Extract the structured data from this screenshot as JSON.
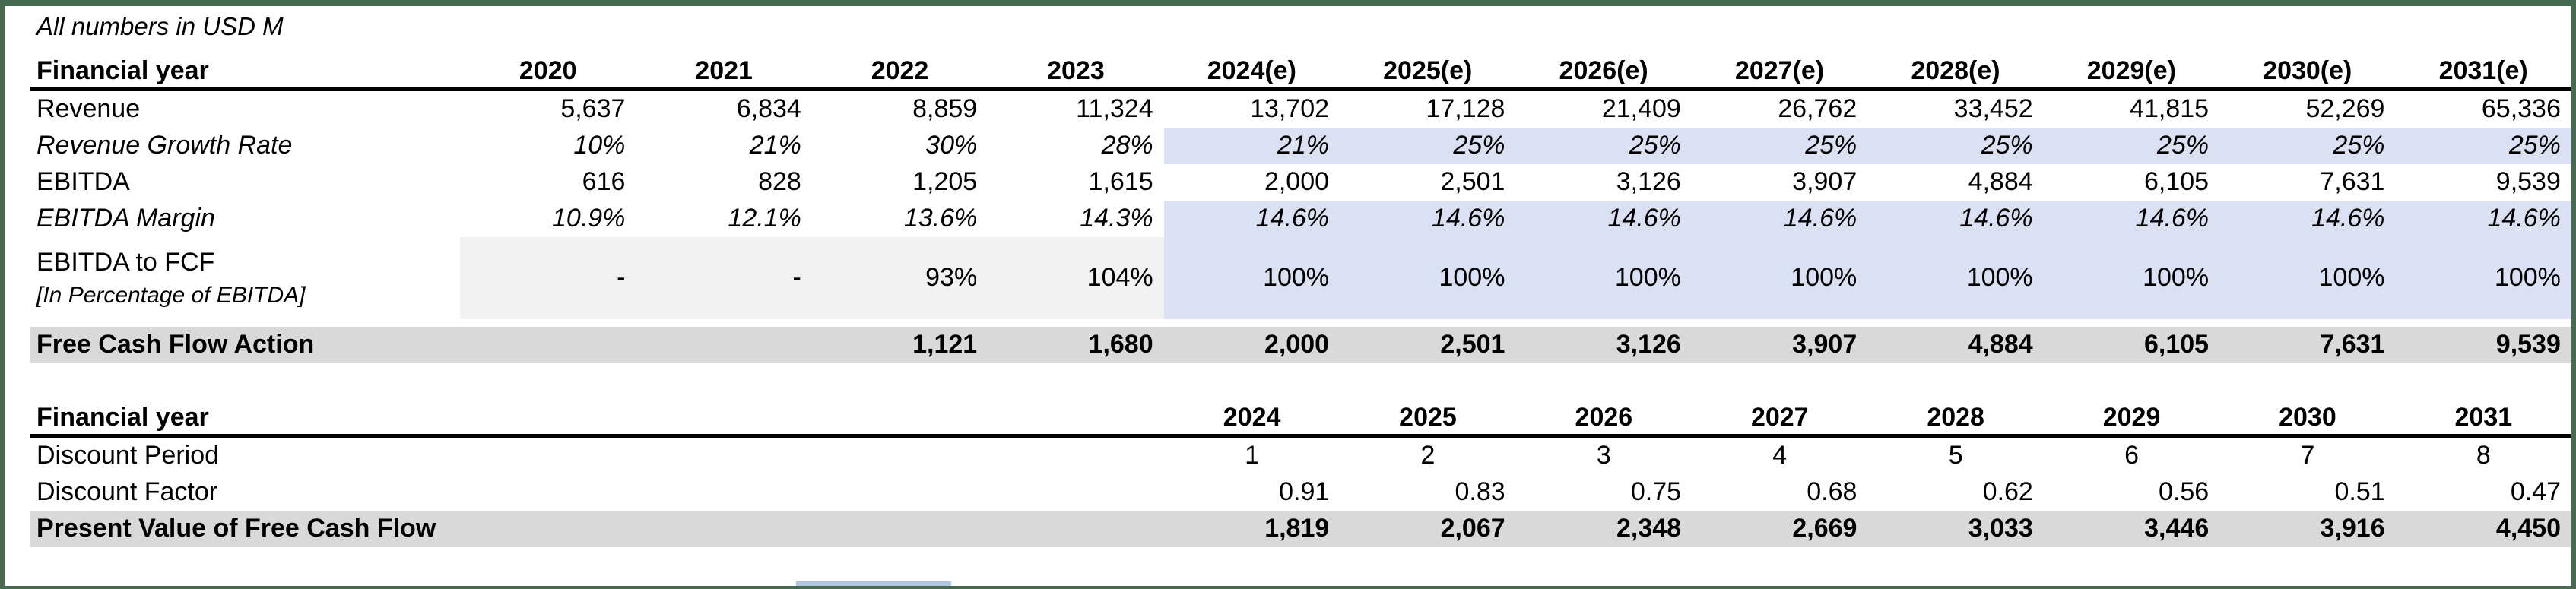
{
  "note": "All numbers in USD M",
  "colors": {
    "frame_border": "#486a50",
    "forecast_highlight_blue": "#d9e1f2",
    "total_row_gray": "#d9d9d9",
    "historical_cell_lightgray": "#f2f2f2",
    "partial_cell_blue": "#afc3e3",
    "header_underline": "#000000"
  },
  "table1": {
    "header_label": "Financial year",
    "years": [
      "2020",
      "2021",
      "2022",
      "2023",
      "2024(e)",
      "2025(e)",
      "2026(e)",
      "2027(e)",
      "2028(e)",
      "2029(e)",
      "2030(e)",
      "2031(e)"
    ],
    "rows": [
      {
        "key": "revenue",
        "label": "Revenue",
        "values": [
          "5,637",
          "6,834",
          "8,859",
          "11,324",
          "13,702",
          "17,128",
          "21,409",
          "26,762",
          "33,452",
          "41,815",
          "52,269",
          "65,336"
        ]
      },
      {
        "key": "revenue-growth-rate",
        "label": "Revenue Growth Rate",
        "italic": true,
        "blue": true,
        "values": [
          "10%",
          "21%",
          "30%",
          "28%",
          "21%",
          "25%",
          "25%",
          "25%",
          "25%",
          "25%",
          "25%",
          "25%"
        ]
      },
      {
        "key": "ebitda",
        "label": "EBITDA",
        "values": [
          "616",
          "828",
          "1,205",
          "1,615",
          "2,000",
          "2,501",
          "3,126",
          "3,907",
          "4,884",
          "6,105",
          "7,631",
          "9,539"
        ]
      },
      {
        "key": "ebitda-margin",
        "label": "EBITDA Margin",
        "italic": true,
        "blue": true,
        "values": [
          "10.9%",
          "12.1%",
          "13.6%",
          "14.3%",
          "14.6%",
          "14.6%",
          "14.6%",
          "14.6%",
          "14.6%",
          "14.6%",
          "14.6%",
          "14.6%"
        ]
      },
      {
        "key": "ebitda-to-fcf",
        "label": "EBITDA to FCF",
        "sublabel": "[In Percentage of EBITDA]",
        "tall": true,
        "blue": true,
        "lightgray": true,
        "values": [
          "-",
          "-",
          "93%",
          "104%",
          "100%",
          "100%",
          "100%",
          "100%",
          "100%",
          "100%",
          "100%",
          "100%"
        ]
      },
      {
        "key": "free-cash-flow-action",
        "label": "Free Cash Flow Action",
        "bold": true,
        "gray": true,
        "values": [
          "",
          "",
          "1,121",
          "1,680",
          "2,000",
          "2,501",
          "3,126",
          "3,907",
          "4,884",
          "6,105",
          "7,631",
          "9,539"
        ]
      }
    ]
  },
  "table2": {
    "header_label": "Financial year",
    "years": [
      "2024",
      "2025",
      "2026",
      "2027",
      "2028",
      "2029",
      "2030",
      "2031"
    ],
    "rows": [
      {
        "key": "discount-period",
        "label": "Discount Period",
        "align": "center",
        "values": [
          "1",
          "2",
          "3",
          "4",
          "5",
          "6",
          "7",
          "8"
        ]
      },
      {
        "key": "discount-factor",
        "label": "Discount Factor",
        "align": "right",
        "values": [
          "0.91",
          "0.83",
          "0.75",
          "0.68",
          "0.62",
          "0.56",
          "0.51",
          "0.47"
        ]
      },
      {
        "key": "pv-of-free-cash-flow",
        "label": "Present Value of Free Cash Flow",
        "align": "right",
        "bold": true,
        "gray": true,
        "values": [
          "1,819",
          "2,067",
          "2,348",
          "2,669",
          "3,033",
          "3,446",
          "3,916",
          "4,450"
        ]
      }
    ]
  }
}
